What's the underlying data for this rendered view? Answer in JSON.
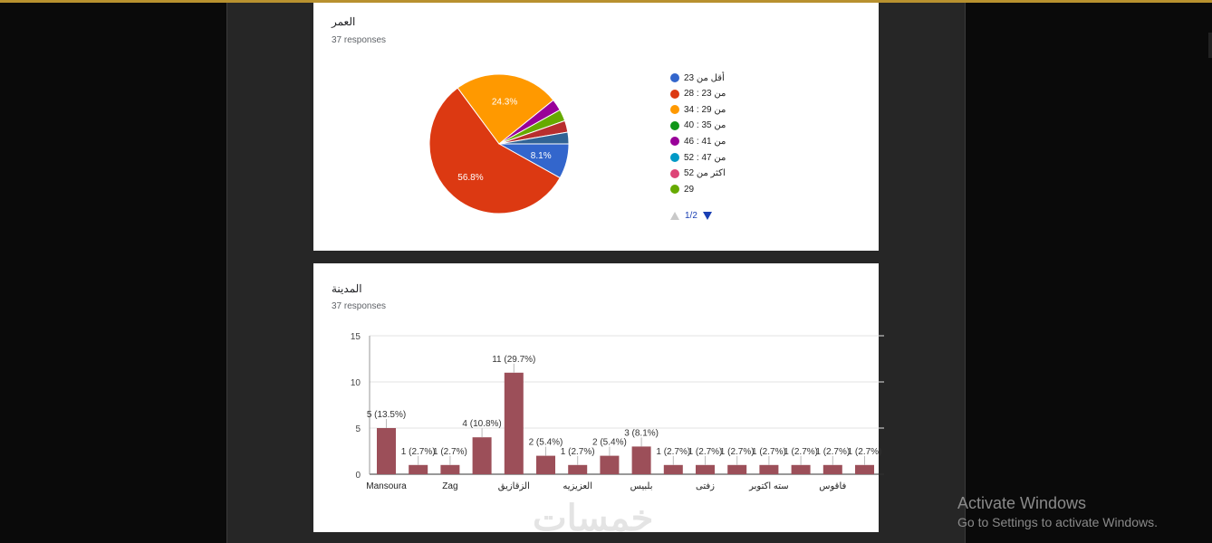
{
  "colors": {
    "accent": "#b8912f",
    "bar": "#9c4f59"
  },
  "age_card": {
    "title": "العمر",
    "responses": "37 responses",
    "pager": "1/2"
  },
  "city_card": {
    "title": "المدينة",
    "responses": "37 responses"
  },
  "watermark": "خمسات",
  "activation": {
    "title": "Activate Windows",
    "subtitle": "Go to Settings to activate Windows."
  },
  "chart_data": [
    {
      "type": "pie",
      "title": "العمر",
      "slices": [
        {
          "label": "أقل من 23",
          "value": 3,
          "percent_label": "8.1%",
          "color": "#3366cc"
        },
        {
          "label": "من 23 : 28",
          "value": 21,
          "percent_label": "56.8%",
          "color": "#dc3912"
        },
        {
          "label": "من 29 : 34",
          "value": 9,
          "percent_label": "24.3%",
          "color": "#ff9900"
        },
        {
          "label": "من 35 : 40",
          "value": 0,
          "percent_label": "",
          "color": "#109618"
        },
        {
          "label": "من 41 : 46",
          "value": 1,
          "percent_label": "",
          "color": "#990099"
        },
        {
          "label": "من 47 : 52",
          "value": 0,
          "percent_label": "",
          "color": "#0099c6"
        },
        {
          "label": "اكثر من 52",
          "value": 0,
          "percent_label": "",
          "color": "#dd4477"
        },
        {
          "label": "29",
          "value": 1,
          "percent_label": "",
          "color": "#66aa00"
        },
        {
          "label": "",
          "value": 1,
          "percent_label": "",
          "color": "#b82e2e"
        },
        {
          "label": "",
          "value": 1,
          "percent_label": "",
          "color": "#316395"
        }
      ],
      "legend": [
        "أقل من 23",
        "من 23 : 28",
        "من 29 : 34",
        "من 35 : 40",
        "من 41 : 46",
        "من 47 : 52",
        "اكثر من 52",
        "29"
      ],
      "legend_position": "right"
    },
    {
      "type": "bar",
      "title": "المدينة",
      "values": [
        5,
        1,
        1,
        4,
        11,
        2,
        1,
        2,
        3,
        1,
        1,
        1,
        1,
        1,
        1,
        1
      ],
      "data_labels": [
        "5 (13.5%)",
        "1 (2.7%)",
        "1 (2.7%)",
        "4 (10.8%)",
        "11 (29.7%)",
        "2 (5.4%)",
        "1 (2.7%)",
        "2 (5.4%)",
        "3 (8.1%)",
        "1 (2.7%)",
        "1 (2.7%)",
        "1 (2.7%)",
        "1 (2.7%)",
        "1 (2.7%)",
        "1 (2.7%)",
        "1 (2.7%)"
      ],
      "tick_labels": [
        "Mansoura",
        "Zag",
        "الزقازيق",
        "العزيزيه",
        "بلبيس",
        "زفتى",
        "سته اكتوبر",
        "فاقوس"
      ],
      "tick_label_bar_index": [
        0,
        2,
        4,
        6,
        8,
        10,
        12,
        14
      ],
      "y_ticks": [
        0,
        5,
        10,
        15
      ],
      "ylim": [
        0,
        15
      ],
      "grid": true
    }
  ]
}
